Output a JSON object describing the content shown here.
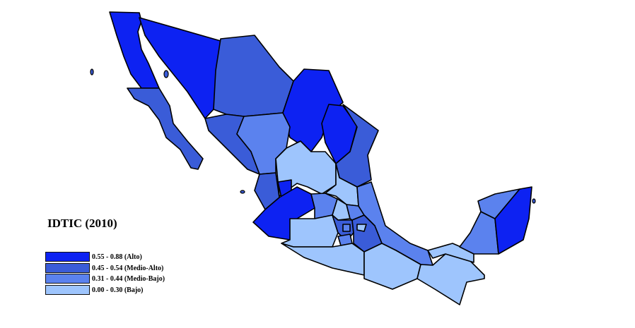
{
  "title": "IDTIC (2010)",
  "legend": [
    {
      "label": "0.55 - 0.88 (Alto)",
      "color": "#0d22f2"
    },
    {
      "label": "0.45 - 0.54 (Medio-Alto)",
      "color": "#3a5cd8"
    },
    {
      "label": "0.31 - 0.44 (Medio-Bajo)",
      "color": "#5b82ee"
    },
    {
      "label": "0.00 - 0.30 (Bajo)",
      "color": "#9ec5fd"
    }
  ]
}
